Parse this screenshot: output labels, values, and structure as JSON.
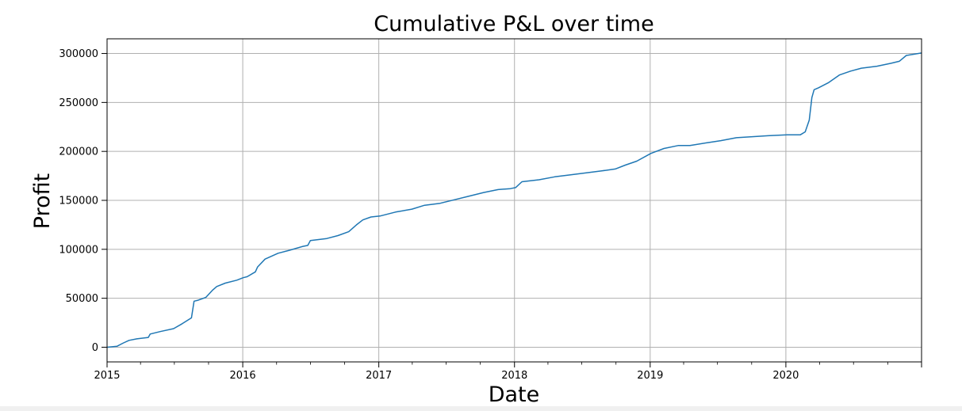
{
  "chart_data": {
    "type": "line",
    "title": "Cumulative P&L over time",
    "xlabel": "Date",
    "ylabel": "Profit",
    "xlim": [
      "2015-01-01",
      "2020-12-31"
    ],
    "ylim": [
      -15000,
      315000
    ],
    "grid": true,
    "legend": "none",
    "line_color": "#1f77b4",
    "x_ticks": [
      "2015",
      "2016",
      "2017",
      "2018",
      "2019",
      "2020"
    ],
    "y_ticks": [
      "0",
      "50000",
      "100000",
      "150000",
      "200000",
      "250000",
      "300000"
    ],
    "x_tick_values": [
      "2015-01-01",
      "2016-01-01",
      "2017-01-01",
      "2018-01-01",
      "2019-01-01",
      "2020-01-01"
    ],
    "y_tick_values": [
      0,
      50000,
      100000,
      150000,
      200000,
      250000,
      300000
    ],
    "series": [
      {
        "x": [
          "2015-01-01",
          "2015-01-28",
          "2015-02-12",
          "2015-03-01",
          "2015-03-22",
          "2015-04-22",
          "2015-04-27",
          "2015-05-24",
          "2015-06-29",
          "2015-07-22",
          "2015-08-16",
          "2015-08-23",
          "2015-09-03",
          "2015-09-24",
          "2015-10-11",
          "2015-10-23",
          "2015-11-15",
          "2015-12-16",
          "2016-01-02",
          "2016-01-13",
          "2016-02-04",
          "2016-02-10",
          "2016-03-01",
          "2016-04-05",
          "2016-05-05",
          "2016-06-11",
          "2016-06-24",
          "2016-07-01",
          "2016-08-14",
          "2016-09-13",
          "2016-10-12",
          "2016-11-02",
          "2016-11-19",
          "2016-12-11",
          "2017-01-04",
          "2017-02-15",
          "2017-03-31",
          "2017-05-04",
          "2017-06-15",
          "2017-07-27",
          "2017-08-28",
          "2017-10-10",
          "2017-11-18",
          "2017-12-21",
          "2018-01-04",
          "2018-01-21",
          "2018-03-08",
          "2018-04-19",
          "2018-05-30",
          "2018-07-11",
          "2018-08-22",
          "2018-09-29",
          "2018-10-26",
          "2018-11-26",
          "2019-01-03",
          "2019-02-07",
          "2019-03-17",
          "2019-04-18",
          "2019-06-05",
          "2019-07-10",
          "2019-08-21",
          "2019-10-03",
          "2019-11-14",
          "2020-01-04",
          "2020-02-09",
          "2020-02-22",
          "2020-03-04",
          "2020-03-11",
          "2020-03-17",
          "2020-03-29",
          "2020-04-24",
          "2020-05-24",
          "2020-06-23",
          "2020-07-22",
          "2020-09-02",
          "2020-10-10",
          "2020-11-01",
          "2020-11-20",
          "2020-12-31"
        ],
        "y": [
          0,
          1000,
          4000,
          7000,
          8500,
          10000,
          13500,
          16000,
          19000,
          24000,
          30000,
          47000,
          48000,
          51000,
          58000,
          62000,
          65500,
          68500,
          71000,
          72000,
          77000,
          82000,
          90000,
          96000,
          99000,
          103000,
          104000,
          109000,
          111000,
          114000,
          118000,
          125000,
          130000,
          133000,
          134000,
          138000,
          141000,
          145000,
          147000,
          151000,
          154000,
          158000,
          161000,
          162000,
          163000,
          169000,
          171000,
          174000,
          176000,
          178000,
          180000,
          182000,
          186000,
          190000,
          198000,
          203000,
          206000,
          206000,
          209000,
          211000,
          214000,
          215000,
          216000,
          217000,
          217000,
          220000,
          232000,
          255000,
          263000,
          265000,
          270000,
          278000,
          282000,
          285000,
          287000,
          290000,
          292000,
          298000,
          300500
        ]
      }
    ]
  }
}
